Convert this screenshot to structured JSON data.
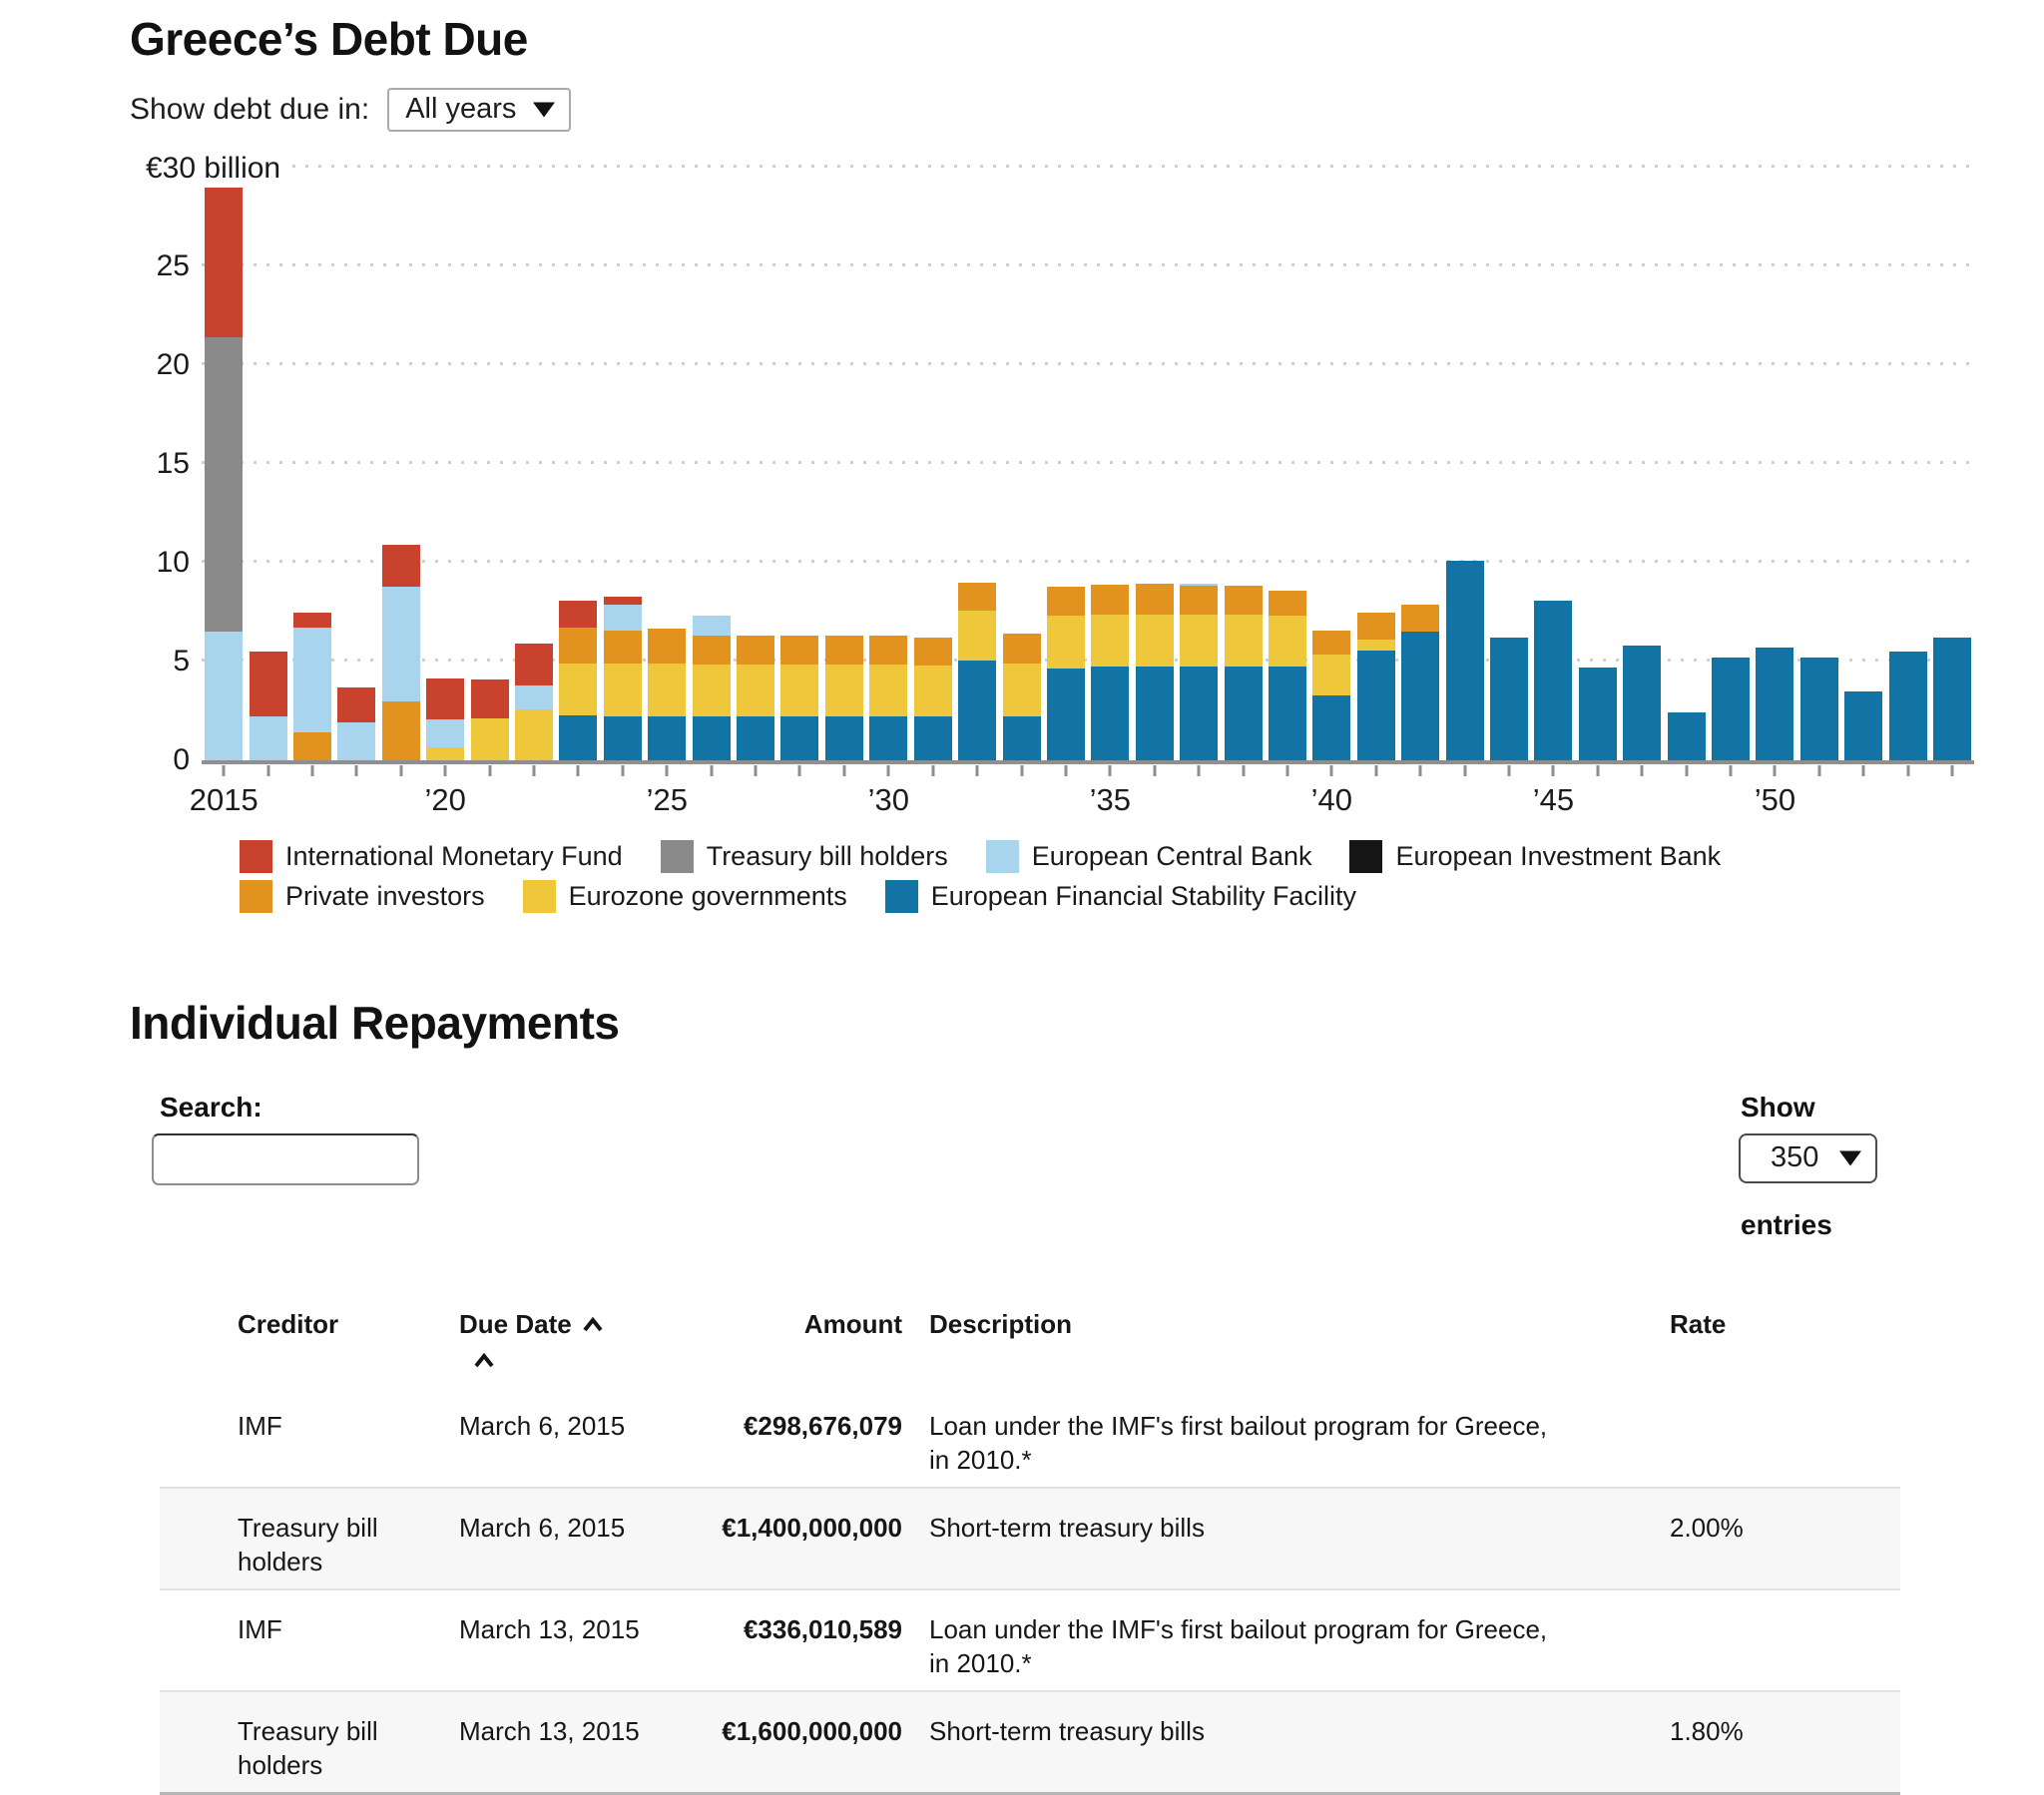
{
  "page": {
    "chart_title": "Greece’s Debt Due",
    "repayments_title": "Individual Repayments"
  },
  "controls": {
    "year_filter_label": "Show debt due in:",
    "year_filter_value": "All years",
    "search_label": "Search:",
    "search_value": "",
    "show_label": "Show",
    "show_value": "350",
    "entries_label": "entries"
  },
  "chart_data": {
    "type": "bar",
    "stacked": true,
    "title": "Greece’s Debt Due",
    "y_axis_top_label": "€30 billion",
    "ylim": [
      0,
      30
    ],
    "y_ticks": [
      0,
      5,
      10,
      15,
      20,
      25
    ],
    "grid_ticks": [
      5,
      10,
      15,
      20,
      25,
      30
    ],
    "unit": "billions of euros",
    "categories": [
      "2015",
      "2016",
      "2017",
      "2018",
      "2019",
      "2020",
      "2021",
      "2022",
      "2023",
      "2024",
      "2025",
      "2026",
      "2027",
      "2028",
      "2029",
      "2030",
      "2031",
      "2032",
      "2033",
      "2034",
      "2035",
      "2036",
      "2037",
      "2038",
      "2039",
      "2040",
      "2041",
      "2042",
      "2043",
      "2044",
      "2045",
      "2046",
      "2047",
      "2048",
      "2049",
      "2050",
      "2051",
      "2052",
      "2053",
      "2054"
    ],
    "x_tick_labels": {
      "0": "2015",
      "5": "’20",
      "10": "’25",
      "15": "’30",
      "20": "’35",
      "25": "’40",
      "30": "’45",
      "35": "’50"
    },
    "series": [
      {
        "name": "European Financial Stability Facility",
        "color": "#1174a4",
        "values": [
          0,
          0,
          0,
          0,
          0,
          0,
          0,
          0,
          2.25,
          2.2,
          2.2,
          2.2,
          2.2,
          2.2,
          2.2,
          2.2,
          2.2,
          5.05,
          2.2,
          4.65,
          4.75,
          4.75,
          4.75,
          4.75,
          4.75,
          3.3,
          5.55,
          6.5,
          10.1,
          6.2,
          8.1,
          4.7,
          5.8,
          2.4,
          5.2,
          5.7,
          5.2,
          3.5,
          5.5,
          6.2
        ]
      },
      {
        "name": "Eurozone governments",
        "color": "#eec73a",
        "values": [
          0,
          0,
          0,
          0,
          0,
          0.65,
          2.1,
          2.6,
          2.65,
          2.7,
          2.7,
          2.65,
          2.65,
          2.65,
          2.65,
          2.65,
          2.6,
          2.55,
          2.7,
          2.65,
          2.6,
          2.6,
          2.6,
          2.6,
          2.55,
          2.05,
          0.55,
          0,
          0,
          0,
          0,
          0,
          0,
          0,
          0,
          0,
          0,
          0,
          0,
          0
        ]
      },
      {
        "name": "Private investors",
        "color": "#e2921f",
        "values": [
          0,
          0,
          1.4,
          0,
          3.0,
          0,
          0,
          0,
          1.8,
          1.65,
          1.75,
          1.45,
          1.45,
          1.45,
          1.45,
          1.45,
          1.4,
          1.4,
          1.5,
          1.5,
          1.55,
          1.6,
          1.5,
          1.5,
          1.3,
          1.2,
          1.4,
          1.4,
          0,
          0,
          0,
          0,
          0,
          0,
          0,
          0,
          0,
          0,
          0,
          0
        ]
      },
      {
        "name": "European Central Bank",
        "color": "#a8d4ee",
        "values": [
          6.5,
          2.2,
          5.3,
          1.9,
          5.8,
          1.4,
          0,
          1.2,
          0,
          1.35,
          0,
          1.05,
          0,
          0,
          0,
          0,
          0,
          0,
          0,
          0,
          0,
          0,
          0.1,
          0,
          0,
          0,
          0,
          0,
          0,
          0,
          0,
          0,
          0,
          0,
          0,
          0,
          0,
          0,
          0,
          0
        ]
      },
      {
        "name": "Treasury bill holders",
        "color": "#8a8a8a",
        "values": [
          14.9,
          0,
          0,
          0,
          0,
          0,
          0,
          0,
          0,
          0,
          0,
          0,
          0,
          0,
          0,
          0,
          0,
          0,
          0,
          0,
          0,
          0,
          0,
          0,
          0,
          0,
          0,
          0,
          0,
          0,
          0,
          0,
          0,
          0,
          0,
          0,
          0,
          0,
          0,
          0
        ]
      },
      {
        "name": "International Monetary Fund",
        "color": "#c8422e",
        "values": [
          7.6,
          3.3,
          0.8,
          1.8,
          2.1,
          2.1,
          2.0,
          2.1,
          1.4,
          0.4,
          0,
          0,
          0,
          0,
          0,
          0,
          0,
          0,
          0,
          0,
          0,
          0,
          0,
          0,
          0,
          0,
          0,
          0,
          0,
          0,
          0,
          0,
          0,
          0,
          0,
          0,
          0,
          0,
          0,
          0
        ]
      }
    ],
    "legend": {
      "position": "bottom",
      "rows": [
        [
          {
            "label": "International Monetary Fund",
            "color": "#c8422e"
          },
          {
            "label": "Treasury bill holders",
            "color": "#8a8a8a"
          },
          {
            "label": "European Central Bank",
            "color": "#a8d4ee"
          },
          {
            "label": "European Investment Bank",
            "color": "#161616"
          }
        ],
        [
          {
            "label": "Private investors",
            "color": "#e2921f"
          },
          {
            "label": "Eurozone governments",
            "color": "#eec73a"
          },
          {
            "label": "European Financial Stability Facility",
            "color": "#1174a4"
          }
        ]
      ]
    },
    "grid": "dotted horizontal"
  },
  "table": {
    "headers": [
      "Creditor",
      "Due Date",
      "Amount",
      "Description",
      "Rate"
    ],
    "sorted_by": "Due Date",
    "rows": [
      {
        "creditor": "IMF",
        "due_date": "March 6, 2015",
        "amount": "€298,676,079",
        "description": "Loan under the IMF's first bailout program for Greece, in 2010.*",
        "rate": ""
      },
      {
        "creditor": "Treasury bill holders",
        "due_date": "March 6, 2015",
        "amount": "€1,400,000,000",
        "description": "Short-term treasury bills",
        "rate": "2.00%"
      },
      {
        "creditor": "IMF",
        "due_date": "March 13, 2015",
        "amount": "€336,010,589",
        "description": "Loan under the IMF's first bailout program for Greece, in 2010.*",
        "rate": ""
      },
      {
        "creditor": "Treasury bill holders",
        "due_date": "March 13, 2015",
        "amount": "€1,600,000,000",
        "description": "Short-term treasury bills",
        "rate": "1.80%"
      }
    ]
  }
}
